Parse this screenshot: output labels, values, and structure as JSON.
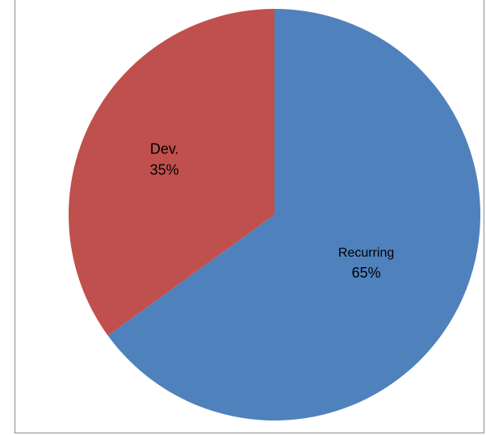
{
  "chart_data": {
    "type": "pie",
    "title": "",
    "slices": [
      {
        "label": "Recurring",
        "value": 65,
        "display": "65%",
        "color": "#4f81bd"
      },
      {
        "label": "Dev.",
        "value": 35,
        "display": "35%",
        "color": "#c0504d"
      }
    ],
    "start_angle_deg": 0,
    "direction": "clockwise",
    "legend": "none"
  }
}
